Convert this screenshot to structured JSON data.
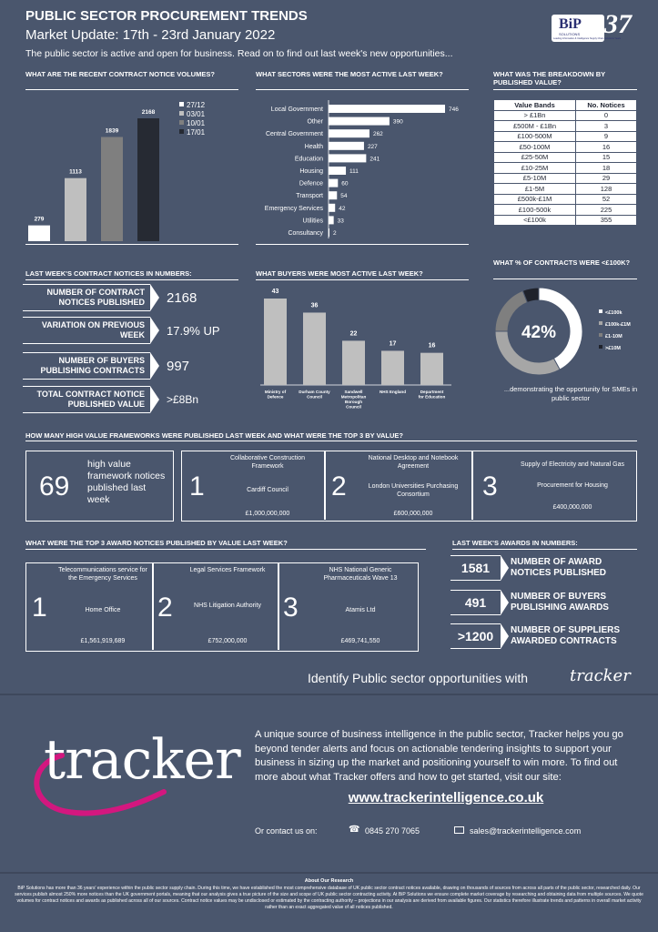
{
  "header": {
    "title": "PUBLIC SECTOR PROCUREMENT TRENDS",
    "subtitle": "Market Update: 17th - 23rd January 2022",
    "intro": "The public sector is active and open for business. Read on to find out last week's new opportunities...",
    "logo_text": "BiP",
    "logo_small": "SOLUTIONS",
    "logo_years": "37",
    "logo_tagline": "Leading Information & Intelligence Supply Chain Solutions Years"
  },
  "sections": {
    "volumes": "WHAT ARE THE RECENT CONTRACT NOTICE VOLUMES?",
    "sectors": "WHAT SECTORS WERE THE MOST ACTIVE LAST WEEK?",
    "breakdown": "WHAT WAS THE BREAKDOWN BY PUBLISHED VALUE?",
    "numbers": "LAST WEEK'S CONTRACT NOTICES IN NUMBERS:",
    "buyers": "WHAT BUYERS WERE MOST ACTIVE LAST WEEK?",
    "percent": "WHAT % OF CONTRACTS WERE <£100K?",
    "frameworks": "HOW MANY HIGH VALUE FRAMEWORKS WERE PUBLISHED LAST WEEK AND WHAT WERE THE TOP 3 BY VALUE?",
    "awards": "WHAT WERE THE TOP 3 AWARD NOTICES PUBLISHED BY VALUE LAST WEEK?",
    "award_numbers": "LAST WEEK'S AWARDS IN NUMBERS:"
  },
  "chart_data": [
    {
      "type": "bar",
      "categories": [
        "27/12",
        "03/01",
        "10/01",
        "17/01"
      ],
      "values": [
        279,
        1113,
        1839,
        2168
      ],
      "colors": [
        "#ffffff",
        "#bfbfbf",
        "#7f7f7f",
        "#262a33"
      ],
      "legend": [
        "27/12",
        "03/01",
        "10/01",
        "17/01"
      ],
      "legend_position": "right"
    },
    {
      "type": "bar",
      "orientation": "horizontal",
      "categories": [
        "Local Government",
        "Other",
        "Central Government",
        "Health",
        "Education",
        "Housing",
        "Defence",
        "Transport",
        "Emergency Services",
        "Utilities",
        "Consultancy"
      ],
      "values": [
        746,
        390,
        262,
        227,
        241,
        111,
        60,
        54,
        42,
        33,
        2
      ]
    },
    {
      "type": "table",
      "columns": [
        "Value Bands",
        "No. Notices"
      ],
      "rows": [
        [
          "> £1Bn",
          "0"
        ],
        [
          "£500M - £1Bn",
          "3"
        ],
        [
          "£100-500M",
          "9"
        ],
        [
          "£50-100M",
          "16"
        ],
        [
          "£25-50M",
          "15"
        ],
        [
          "£10-25M",
          "18"
        ],
        [
          "£5-10M",
          "29"
        ],
        [
          "£1-5M",
          "128"
        ],
        [
          "£500k-£1M",
          "52"
        ],
        [
          "£100-500k",
          "225"
        ],
        [
          "<£100k",
          "355"
        ]
      ]
    },
    {
      "type": "bar",
      "categories": [
        "Ministry of Defence",
        "Durham County Council",
        "Sandwell Metropolitan Borough Council",
        "NHS England",
        "Department for Education"
      ],
      "values": [
        43,
        36,
        22,
        17,
        16
      ]
    },
    {
      "type": "pie",
      "style": "donut",
      "categories": [
        "<£100k",
        "£100k-£1M",
        "£1-10M",
        ">£10M"
      ],
      "values": [
        42,
        33,
        19,
        6
      ],
      "colors": [
        "#ffffff",
        "#a6a6a6",
        "#7f7f7f",
        "#1f222b"
      ],
      "center_label": "42%",
      "legend_position": "right"
    }
  ],
  "numbers": [
    {
      "label": "NUMBER OF CONTRACT NOTICES PUBLISHED",
      "value": "2168"
    },
    {
      "label": "VARIATION ON PREVIOUS WEEK",
      "value": "17.9% UP"
    },
    {
      "label": "NUMBER OF BUYERS PUBLISHING CONTRACTS",
      "value": "997"
    },
    {
      "label": "TOTAL CONTRACT NOTICE PUBLISHED VALUE",
      "value": ">£8Bn"
    }
  ],
  "percent_note": "...demonstrating the opportunity for SMEs in public sector",
  "frameworks": {
    "count": "69",
    "count_label": "high value framework notices published last week",
    "items": [
      {
        "rank": "1",
        "name": "Collaborative Construction Framework",
        "buyer": "Cardiff Council",
        "value": "£1,000,000,000"
      },
      {
        "rank": "2",
        "name": "National Desktop and Notebook Agreement",
        "buyer": "London Universities Purchasing Consortium",
        "value": "£600,000,000"
      },
      {
        "rank": "3",
        "name": "Supply of Electricity and Natural Gas",
        "buyer": "Procurement for Housing",
        "value": "£400,000,000"
      }
    ]
  },
  "awards": [
    {
      "rank": "1",
      "name": "Telecommunications service for the Emergency Services",
      "buyer": "Home Office",
      "value": "£1,561,919,689"
    },
    {
      "rank": "2",
      "name": "Legal Services Framework",
      "buyer": "NHS Litigation Authority",
      "value": "£752,000,000"
    },
    {
      "rank": "3",
      "name": "NHS National Generic Pharmaceuticals Wave 13",
      "buyer": "Atamis Ltd",
      "value": "£469,741,550"
    }
  ],
  "award_numbers": [
    {
      "value": "1581",
      "label": "NUMBER OF AWARD NOTICES PUBLISHED"
    },
    {
      "value": "491",
      "label": "NUMBER OF BUYERS PUBLISHING AWARDS"
    },
    {
      "value": ">1200",
      "label": "NUMBER OF SUPPLIERS AWARDED CONTRACTS"
    }
  ],
  "promo": {
    "identify": "Identify Public sector opportunities with",
    "tracker_logo": "tracker",
    "body": "A unique source of business intelligence in the public sector, Tracker helps you go beyond tender alerts and focus on actionable tendering insights to support your business in sizing up the market and positioning yourself to win more. To find out more about what Tracker offers and how to get started, visit our site:",
    "url": "www.trackerintelligence.co.uk",
    "contact_label": "Or contact us on:",
    "phone": "0845 270 7065",
    "email": "sales@trackerintelligence.com"
  },
  "footer": {
    "title": "About Our Research",
    "text": "BiP Solutions has more than 36 years' experience within the public sector supply chain. During this time, we have established the most comprehensive database of UK public sector contract notices available, drawing on thousands of sources from across all parts of the public sector, researched daily. Our services publish almost 250% more notices than the UK government portals, meaning that our analysis gives a true picture of the size and scope of UK public sector contracting activity. At BiP Solutions we ensure complete market coverage by researching and obtaining data from multiple sources. We quote volumes for contract notices and awards as published across all of our sources. Contract notice values may be undisclosed or estimated by the contracting authority – projections in our analysis are derived from available figures. Our statistics therefore illustrate trends and patterns in overall market activity rather than an exact aggregated value of all notices published."
  }
}
